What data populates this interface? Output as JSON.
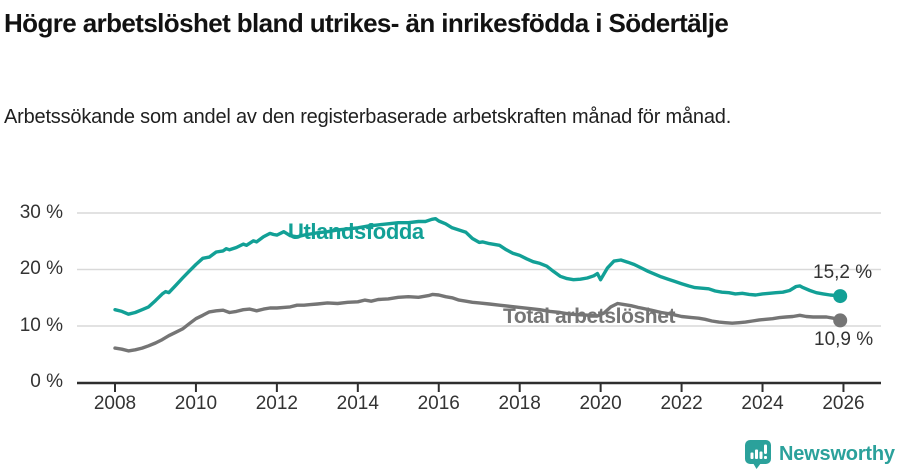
{
  "header": {
    "title": "Högre arbetslöshet bland utrikes- än inrikesfödda i Södertälje",
    "subtitle": "Arbetssökande som andel av den registerbaserade arbetskraften månad för månad."
  },
  "chart_data": {
    "type": "line",
    "title": "Högre arbetslöshet bland utrikes- än inrikesfödda i Södertälje",
    "subtitle": "Arbetssökande som andel av den registerbaserade arbetskraften månad för månad.",
    "xlabel": "",
    "ylabel": "",
    "xlim": [
      2007.1,
      2026.9
    ],
    "ylim": [
      0,
      32
    ],
    "grid": "horizontal",
    "grid_color": "#d9d9d9",
    "axis_color": "#2e2e2e",
    "x_axis": {
      "ticks": [
        2008,
        2010,
        2012,
        2014,
        2016,
        2018,
        2020,
        2022,
        2024,
        2026
      ],
      "tick_labels": [
        "2008",
        "2010",
        "2012",
        "2014",
        "2016",
        "2018",
        "2020",
        "2022",
        "2024",
        "2026"
      ]
    },
    "y_axis": {
      "ticks": [
        0,
        10,
        20,
        30
      ],
      "tick_labels": [
        "0 %",
        "10 %",
        "20 %",
        "30 %"
      ]
    },
    "legend_position": "inline-labels-on-lines",
    "series": [
      {
        "name": "Utlandsfödda",
        "color": "#12a096",
        "end_label": "15,2 %",
        "end_value": 15.2,
        "end_dot": true,
        "points": [
          [
            2008.0,
            12.8
          ],
          [
            2008.17,
            12.5
          ],
          [
            2008.33,
            12.0
          ],
          [
            2008.5,
            12.3
          ],
          [
            2008.67,
            12.8
          ],
          [
            2008.83,
            13.3
          ],
          [
            2009.0,
            14.4
          ],
          [
            2009.17,
            15.6
          ],
          [
            2009.25,
            16.0
          ],
          [
            2009.33,
            15.8
          ],
          [
            2009.5,
            17.1
          ],
          [
            2009.67,
            18.4
          ],
          [
            2009.83,
            19.6
          ],
          [
            2010.0,
            20.8
          ],
          [
            2010.17,
            21.9
          ],
          [
            2010.33,
            22.1
          ],
          [
            2010.5,
            23.0
          ],
          [
            2010.67,
            23.2
          ],
          [
            2010.75,
            23.6
          ],
          [
            2010.83,
            23.4
          ],
          [
            2011.0,
            23.8
          ],
          [
            2011.17,
            24.4
          ],
          [
            2011.25,
            24.2
          ],
          [
            2011.42,
            25.0
          ],
          [
            2011.5,
            24.8
          ],
          [
            2011.67,
            25.7
          ],
          [
            2011.83,
            26.3
          ],
          [
            2011.92,
            26.1
          ],
          [
            2012.0,
            26.0
          ],
          [
            2012.17,
            26.6
          ],
          [
            2012.33,
            25.9
          ],
          [
            2012.5,
            25.7
          ],
          [
            2012.67,
            26.0
          ],
          [
            2012.83,
            26.2
          ],
          [
            2013.0,
            26.4
          ],
          [
            2013.25,
            26.6
          ],
          [
            2013.5,
            26.9
          ],
          [
            2013.75,
            27.1
          ],
          [
            2014.0,
            27.3
          ],
          [
            2014.25,
            27.6
          ],
          [
            2014.5,
            27.8
          ],
          [
            2014.75,
            28.0
          ],
          [
            2015.0,
            28.2
          ],
          [
            2015.25,
            28.2
          ],
          [
            2015.5,
            28.4
          ],
          [
            2015.67,
            28.4
          ],
          [
            2015.83,
            28.8
          ],
          [
            2015.92,
            28.9
          ],
          [
            2016.0,
            28.5
          ],
          [
            2016.17,
            28.0
          ],
          [
            2016.33,
            27.3
          ],
          [
            2016.5,
            26.9
          ],
          [
            2016.67,
            26.5
          ],
          [
            2016.83,
            25.4
          ],
          [
            2017.0,
            24.7
          ],
          [
            2017.08,
            24.8
          ],
          [
            2017.25,
            24.5
          ],
          [
            2017.5,
            24.2
          ],
          [
            2017.67,
            23.4
          ],
          [
            2017.83,
            22.8
          ],
          [
            2018.0,
            22.4
          ],
          [
            2018.17,
            21.8
          ],
          [
            2018.33,
            21.3
          ],
          [
            2018.5,
            21.0
          ],
          [
            2018.67,
            20.5
          ],
          [
            2018.83,
            19.6
          ],
          [
            2019.0,
            18.7
          ],
          [
            2019.17,
            18.3
          ],
          [
            2019.33,
            18.1
          ],
          [
            2019.5,
            18.2
          ],
          [
            2019.67,
            18.4
          ],
          [
            2019.83,
            18.8
          ],
          [
            2019.92,
            19.2
          ],
          [
            2020.0,
            18.1
          ],
          [
            2020.17,
            20.2
          ],
          [
            2020.33,
            21.4
          ],
          [
            2020.5,
            21.6
          ],
          [
            2020.67,
            21.2
          ],
          [
            2020.83,
            20.8
          ],
          [
            2021.0,
            20.2
          ],
          [
            2021.17,
            19.6
          ],
          [
            2021.33,
            19.1
          ],
          [
            2021.5,
            18.6
          ],
          [
            2021.67,
            18.2
          ],
          [
            2021.83,
            17.8
          ],
          [
            2022.0,
            17.4
          ],
          [
            2022.17,
            17.0
          ],
          [
            2022.33,
            16.7
          ],
          [
            2022.5,
            16.6
          ],
          [
            2022.67,
            16.5
          ],
          [
            2022.83,
            16.1
          ],
          [
            2023.0,
            15.9
          ],
          [
            2023.17,
            15.8
          ],
          [
            2023.33,
            15.6
          ],
          [
            2023.5,
            15.7
          ],
          [
            2023.67,
            15.5
          ],
          [
            2023.83,
            15.4
          ],
          [
            2024.0,
            15.6
          ],
          [
            2024.17,
            15.7
          ],
          [
            2024.33,
            15.8
          ],
          [
            2024.5,
            15.9
          ],
          [
            2024.67,
            16.2
          ],
          [
            2024.83,
            16.9
          ],
          [
            2024.92,
            17.0
          ],
          [
            2025.0,
            16.7
          ],
          [
            2025.17,
            16.2
          ],
          [
            2025.33,
            15.8
          ],
          [
            2025.5,
            15.6
          ],
          [
            2025.67,
            15.4
          ],
          [
            2025.83,
            15.3
          ],
          [
            2025.92,
            15.2
          ]
        ]
      },
      {
        "name": "Total arbetslöshet",
        "color": "#757575",
        "end_label": "10,9 %",
        "end_value": 10.9,
        "end_dot": true,
        "points": [
          [
            2008.0,
            6.0
          ],
          [
            2008.17,
            5.8
          ],
          [
            2008.33,
            5.5
          ],
          [
            2008.5,
            5.7
          ],
          [
            2008.67,
            6.0
          ],
          [
            2008.83,
            6.4
          ],
          [
            2009.0,
            6.9
          ],
          [
            2009.17,
            7.5
          ],
          [
            2009.33,
            8.2
          ],
          [
            2009.5,
            8.8
          ],
          [
            2009.67,
            9.4
          ],
          [
            2009.83,
            10.3
          ],
          [
            2010.0,
            11.2
          ],
          [
            2010.17,
            11.8
          ],
          [
            2010.33,
            12.4
          ],
          [
            2010.5,
            12.6
          ],
          [
            2010.67,
            12.7
          ],
          [
            2010.83,
            12.3
          ],
          [
            2011.0,
            12.5
          ],
          [
            2011.17,
            12.8
          ],
          [
            2011.33,
            12.9
          ],
          [
            2011.5,
            12.6
          ],
          [
            2011.67,
            12.9
          ],
          [
            2011.83,
            13.1
          ],
          [
            2012.0,
            13.1
          ],
          [
            2012.17,
            13.2
          ],
          [
            2012.33,
            13.3
          ],
          [
            2012.5,
            13.6
          ],
          [
            2012.67,
            13.6
          ],
          [
            2012.83,
            13.7
          ],
          [
            2013.0,
            13.8
          ],
          [
            2013.25,
            14.0
          ],
          [
            2013.5,
            13.9
          ],
          [
            2013.75,
            14.1
          ],
          [
            2014.0,
            14.2
          ],
          [
            2014.17,
            14.5
          ],
          [
            2014.33,
            14.3
          ],
          [
            2014.5,
            14.6
          ],
          [
            2014.75,
            14.7
          ],
          [
            2015.0,
            15.0
          ],
          [
            2015.25,
            15.1
          ],
          [
            2015.5,
            15.0
          ],
          [
            2015.75,
            15.3
          ],
          [
            2015.85,
            15.5
          ],
          [
            2016.0,
            15.4
          ],
          [
            2016.17,
            15.1
          ],
          [
            2016.33,
            14.9
          ],
          [
            2016.5,
            14.5
          ],
          [
            2016.67,
            14.3
          ],
          [
            2016.83,
            14.1
          ],
          [
            2017.0,
            14.0
          ],
          [
            2017.25,
            13.8
          ],
          [
            2017.5,
            13.6
          ],
          [
            2017.75,
            13.4
          ],
          [
            2018.0,
            13.2
          ],
          [
            2018.25,
            13.0
          ],
          [
            2018.5,
            12.8
          ],
          [
            2018.75,
            12.5
          ],
          [
            2019.0,
            12.3
          ],
          [
            2019.25,
            12.0
          ],
          [
            2019.5,
            11.9
          ],
          [
            2019.75,
            11.8
          ],
          [
            2019.92,
            11.7
          ],
          [
            2020.08,
            12.2
          ],
          [
            2020.25,
            13.3
          ],
          [
            2020.42,
            13.9
          ],
          [
            2020.58,
            13.7
          ],
          [
            2020.75,
            13.5
          ],
          [
            2020.92,
            13.2
          ],
          [
            2021.0,
            13.1
          ],
          [
            2021.25,
            12.7
          ],
          [
            2021.5,
            12.3
          ],
          [
            2021.75,
            12.0
          ],
          [
            2022.0,
            11.6
          ],
          [
            2022.25,
            11.4
          ],
          [
            2022.42,
            11.3
          ],
          [
            2022.58,
            11.1
          ],
          [
            2022.75,
            10.8
          ],
          [
            2022.92,
            10.6
          ],
          [
            2023.08,
            10.5
          ],
          [
            2023.25,
            10.4
          ],
          [
            2023.42,
            10.5
          ],
          [
            2023.58,
            10.6
          ],
          [
            2023.75,
            10.8
          ],
          [
            2023.92,
            11.0
          ],
          [
            2024.08,
            11.1
          ],
          [
            2024.25,
            11.2
          ],
          [
            2024.42,
            11.4
          ],
          [
            2024.58,
            11.5
          ],
          [
            2024.75,
            11.6
          ],
          [
            2024.92,
            11.8
          ],
          [
            2025.08,
            11.6
          ],
          [
            2025.25,
            11.5
          ],
          [
            2025.42,
            11.5
          ],
          [
            2025.58,
            11.5
          ],
          [
            2025.75,
            11.3
          ],
          [
            2025.92,
            10.9
          ]
        ]
      }
    ]
  },
  "footer": {
    "brand": "Newsworthy",
    "brand_color": "#2ba19b"
  }
}
